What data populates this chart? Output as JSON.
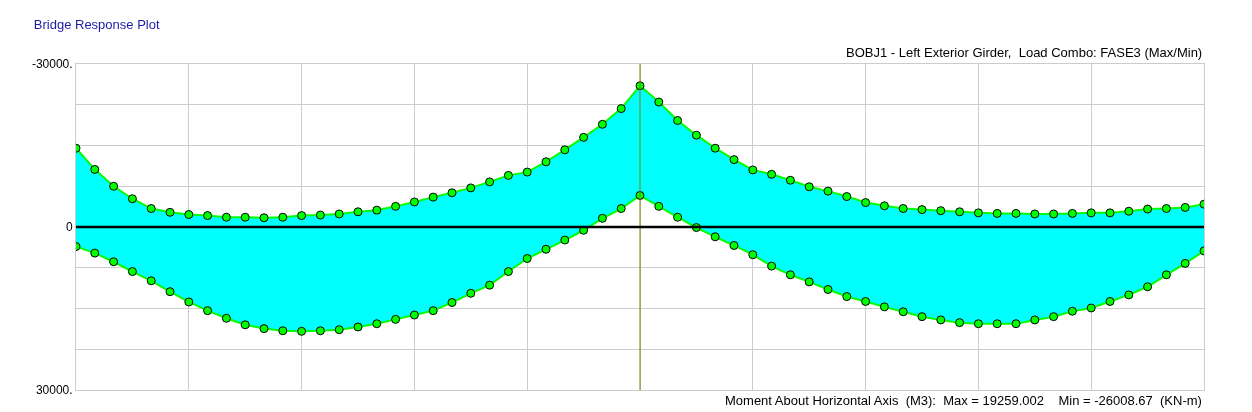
{
  "chart_data": {
    "type": "line",
    "title": "Bridge Response Plot",
    "subtitle": "BOBJ1 - Left Exterior Girder,  Load Combo: FASE3 (Max/Min)",
    "annotations": [
      "Moment About Horizontal Axis  (M3):  Max = 19259.002    Min = -26008.67  (KN-m)"
    ],
    "categories": [
      null,
      null,
      null,
      null,
      null,
      null,
      null,
      null,
      null,
      null,
      null,
      null,
      null,
      null,
      null,
      null,
      null,
      null,
      null,
      null,
      null,
      null,
      null,
      null,
      null,
      null,
      null,
      null,
      null,
      null,
      null,
      null,
      null,
      null,
      null,
      null,
      null,
      null,
      null,
      null,
      null,
      null,
      null,
      null,
      null,
      null,
      null,
      null,
      null,
      null,
      null,
      null,
      null,
      null,
      null,
      null,
      null,
      null,
      null,
      null,
      null
    ],
    "series": [
      {
        "color": "#00ff00",
        "values": [
          -14500,
          -10600,
          -7500,
          -5200,
          -3400,
          -2700,
          -2300,
          -2100,
          -1800,
          -1800,
          -1700,
          -1800,
          -2100,
          -2200,
          -2400,
          -2800,
          -3100,
          -3800,
          -4600,
          -5500,
          -6300,
          -7200,
          -8300,
          -9500,
          -10100,
          -12000,
          -14200,
          -16500,
          -18900,
          -21800,
          -26000,
          -23000,
          -19600,
          -16900,
          -14500,
          -12400,
          -10500,
          -9700,
          -8600,
          -7400,
          -6600,
          -5600,
          -4500,
          -3900,
          -3400,
          -3200,
          -3000,
          -2800,
          -2600,
          -2500,
          -2500,
          -2400,
          -2400,
          -2500,
          -2600,
          -2600,
          -2900,
          -3300,
          -3400,
          -3600,
          -4200
        ]
      },
      {
        "color": "#00ff00",
        "lower": [
          -14500,
          -10600,
          -7500,
          -5200,
          -3400,
          -2700,
          -2300,
          -2100,
          -1800,
          -1800,
          -1700,
          -1800,
          -2100,
          -2200,
          -2400,
          -2800,
          -3100,
          -3800,
          -4600,
          -5500,
          -6300,
          -7200,
          -8300,
          -9500,
          -10100,
          -12000,
          -14200,
          -16500,
          -18900,
          -21800,
          -26000,
          -23000,
          -19600,
          -16900,
          -14500,
          -12400,
          -10500,
          -9700,
          -8600,
          -7400,
          -6600,
          -5600,
          -4500,
          -3900,
          -3400,
          -3200,
          -3000,
          -2800,
          -2600,
          -2500,
          -2500,
          -2400,
          -2400,
          -2500,
          -2600,
          -2600,
          -2900,
          -3300,
          -3400,
          -3600,
          -4200
        ],
        "upper": [
          3600,
          4800,
          6400,
          8200,
          9900,
          11900,
          13800,
          15400,
          16800,
          18000,
          18700,
          19100,
          19200,
          19100,
          18900,
          18400,
          17800,
          17000,
          16200,
          15400,
          13900,
          12200,
          10700,
          8200,
          5800,
          4100,
          2400,
          600,
          -1600,
          -3400,
          -5800,
          -3800,
          -1800,
          100,
          1800,
          3400,
          5100,
          7200,
          8800,
          10100,
          11500,
          12800,
          13700,
          14700,
          15600,
          16500,
          17100,
          17600,
          17800,
          17800,
          17800,
          17100,
          16500,
          15500,
          14900,
          13700,
          12500,
          11000,
          8800,
          6700,
          4400
        ],
        "values": [
          3600,
          4800,
          6400,
          8200,
          9900,
          11900,
          13800,
          15400,
          16800,
          18000,
          18700,
          19100,
          19200,
          19100,
          18900,
          18400,
          17800,
          17000,
          16200,
          15400,
          13900,
          12200,
          10700,
          8200,
          5800,
          4100,
          2400,
          600,
          -1600,
          -3400,
          -5800,
          -3800,
          -1800,
          100,
          1800,
          3400,
          5100,
          7200,
          8800,
          10100,
          11500,
          12800,
          13700,
          14700,
          15600,
          16500,
          17100,
          17600,
          17800,
          17800,
          17800,
          17100,
          16500,
          15500,
          14900,
          13700,
          12500,
          11000,
          8800,
          6700,
          4400
        ]
      }
    ],
    "ylim": [
      30000,
      -30000
    ],
    "yticks": [
      {
        "value": -30000,
        "label": "-30000."
      },
      {
        "value": -22500,
        "label": null
      },
      {
        "value": -15000,
        "label": null
      },
      {
        "value": -7500,
        "label": null
      },
      0,
      {
        "value": 7500,
        "label": null
      },
      {
        "value": 15000,
        "label": null
      },
      {
        "value": 22500,
        "label": null
      },
      {
        "value": 30000,
        "label": "30000."
      }
    ],
    "ref_lines": [
      {
        "axis": "y",
        "value": 0,
        "color": "#000000"
      }
    ],
    "grid": true,
    "tick_labels": "y",
    "marker": "circle",
    "line_style": "solid"
  }
}
